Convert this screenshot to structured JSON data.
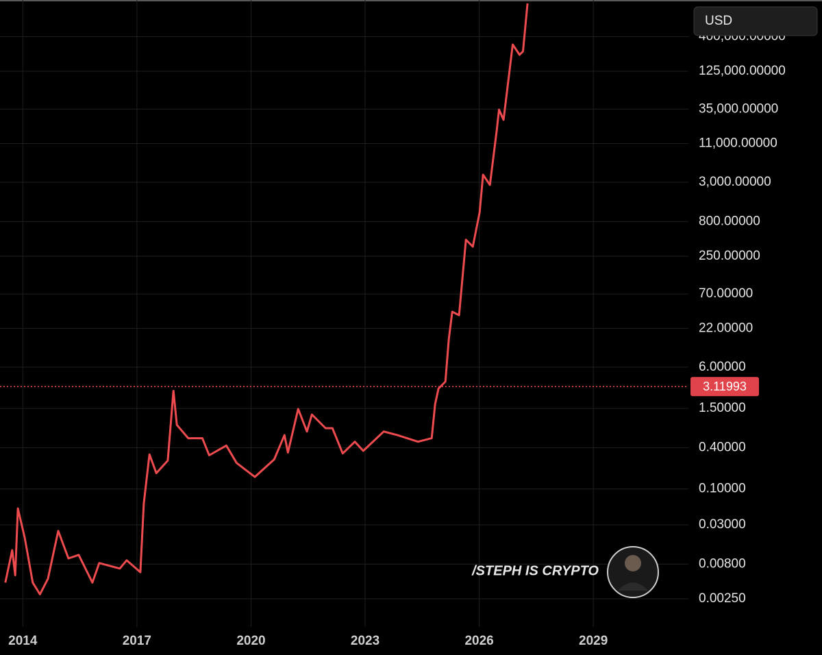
{
  "chart_data": {
    "type": "line",
    "currency": "USD",
    "watermark": "/STEPH IS CRYPTO",
    "color": "#ee4b4f",
    "log_y": true,
    "grid": true,
    "last_price": 3.11993,
    "xlim": [
      2013.4,
      2031.5
    ],
    "xticks": [
      2014,
      2017,
      2020,
      2023,
      2026,
      2029
    ],
    "ylim": [
      0.00097,
      1370000
    ],
    "yticks": [
      {
        "value": 0.0025,
        "label": "0.00250"
      },
      {
        "value": 0.008,
        "label": "0.00800"
      },
      {
        "value": 0.03,
        "label": "0.03000"
      },
      {
        "value": 0.1,
        "label": "0.10000"
      },
      {
        "value": 0.4,
        "label": "0.40000"
      },
      {
        "value": 1.5,
        "label": "1.50000"
      },
      {
        "value": 6,
        "label": "6.00000"
      },
      {
        "value": 22,
        "label": "22.00000"
      },
      {
        "value": 70,
        "label": "70.00000"
      },
      {
        "value": 250,
        "label": "250.00000"
      },
      {
        "value": 800,
        "label": "800.00000"
      },
      {
        "value": 3000,
        "label": "3,000.00000"
      },
      {
        "value": 11000,
        "label": "11,000.00000"
      },
      {
        "value": 35000,
        "label": "35,000.00000"
      },
      {
        "value": 125000,
        "label": "125,000.00000"
      },
      {
        "value": 400000,
        "label": "400,000.00000"
      }
    ],
    "x": [
      2013.54,
      2013.72,
      2013.8,
      2013.87,
      2014.05,
      2014.26,
      2014.45,
      2014.66,
      2014.93,
      2015.2,
      2015.47,
      2015.83,
      2016.01,
      2016.55,
      2016.73,
      2017.09,
      2017.18,
      2017.33,
      2017.51,
      2017.81,
      2017.96,
      2018.05,
      2018.35,
      2018.72,
      2018.9,
      2019.35,
      2019.62,
      2020.1,
      2020.61,
      2020.88,
      2020.97,
      2021.24,
      2021.47,
      2021.6,
      2021.96,
      2022.14,
      2022.41,
      2022.73,
      2022.95,
      2023.49,
      2023.85,
      2024.39,
      2024.75,
      2024.84,
      2024.93,
      2025.11,
      2025.2,
      2025.29,
      2025.47,
      2025.65,
      2025.83,
      2026.01,
      2026.1,
      2026.28,
      2026.46,
      2026.52,
      2026.64,
      2026.88,
      2027.06,
      2027.15,
      2027.27
    ],
    "values": [
      0.0043,
      0.0128,
      0.0055,
      0.052,
      0.0194,
      0.0043,
      0.0029,
      0.0049,
      0.0244,
      0.0097,
      0.0109,
      0.0043,
      0.0083,
      0.0069,
      0.0091,
      0.0061,
      0.061,
      0.32,
      0.17,
      0.26,
      2.7,
      0.86,
      0.55,
      0.55,
      0.31,
      0.43,
      0.24,
      0.15,
      0.27,
      0.61,
      0.34,
      1.47,
      0.69,
      1.22,
      0.77,
      0.77,
      0.33,
      0.49,
      0.36,
      0.69,
      0.61,
      0.49,
      0.55,
      1.73,
      2.93,
      3.69,
      15.4,
      38.6,
      34.4,
      434,
      344,
      1090,
      3860,
      2740,
      17300,
      34400,
      24400,
      307000,
      217000,
      244000,
      1220000
    ]
  }
}
